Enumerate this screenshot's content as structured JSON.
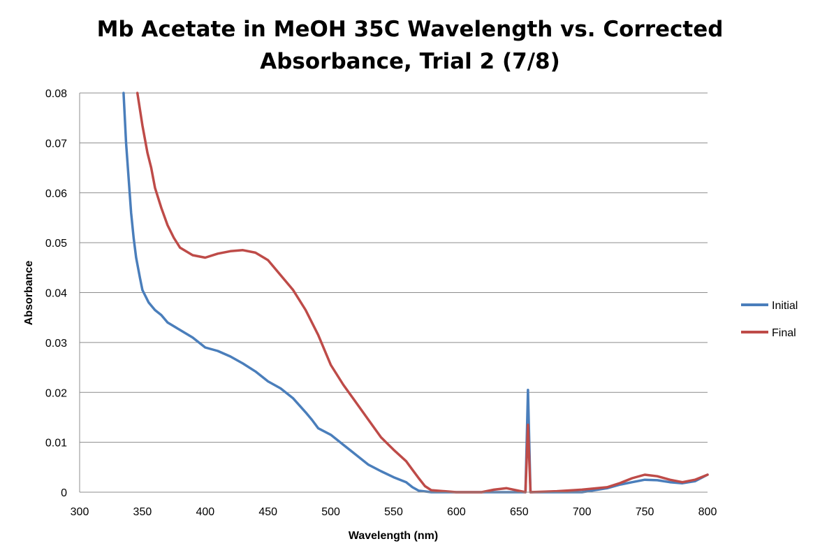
{
  "chart_data": {
    "type": "line",
    "title_lines": [
      "Mb Acetate in MeOH 35C Wavelength vs. Corrected",
      "Absorbance, Trial 2 (7/8)"
    ],
    "xlabel": "Wavelength (nm)",
    "ylabel": "Absorbance",
    "xlim": [
      300,
      800
    ],
    "ylim": [
      0,
      0.08
    ],
    "x_ticks": [
      "300",
      "350",
      "400",
      "450",
      "500",
      "550",
      "600",
      "650",
      "700",
      "750",
      "800"
    ],
    "y_ticks": [
      "0",
      "0.01",
      "0.02",
      "0.03",
      "0.04",
      "0.05",
      "0.06",
      "0.07",
      "0.08"
    ],
    "grid": "horizontal",
    "legend_position": "right",
    "series": [
      {
        "name": "Initial",
        "color": "#4a7ebb",
        "points": [
          [
            335,
            0.08
          ],
          [
            337,
            0.07
          ],
          [
            339,
            0.063
          ],
          [
            341,
            0.056
          ],
          [
            343,
            0.051
          ],
          [
            345,
            0.047
          ],
          [
            348,
            0.043
          ],
          [
            350,
            0.0405
          ],
          [
            355,
            0.038
          ],
          [
            360,
            0.0365
          ],
          [
            365,
            0.0355
          ],
          [
            370,
            0.034
          ],
          [
            380,
            0.0325
          ],
          [
            390,
            0.031
          ],
          [
            400,
            0.029
          ],
          [
            410,
            0.0283
          ],
          [
            420,
            0.0272
          ],
          [
            430,
            0.0258
          ],
          [
            440,
            0.0242
          ],
          [
            450,
            0.0222
          ],
          [
            460,
            0.0208
          ],
          [
            470,
            0.0188
          ],
          [
            480,
            0.016
          ],
          [
            485,
            0.0145
          ],
          [
            490,
            0.0128
          ],
          [
            500,
            0.0115
          ],
          [
            510,
            0.0095
          ],
          [
            520,
            0.0075
          ],
          [
            530,
            0.0055
          ],
          [
            540,
            0.0042
          ],
          [
            550,
            0.003
          ],
          [
            560,
            0.002
          ],
          [
            565,
            0.001
          ],
          [
            570,
            0.0003
          ],
          [
            580,
            0.0
          ],
          [
            600,
            0.0
          ],
          [
            620,
            0.0
          ],
          [
            640,
            0.0
          ],
          [
            655,
            0.0
          ],
          [
            657,
            0.0205
          ],
          [
            659,
            0.0
          ],
          [
            680,
            0.0
          ],
          [
            700,
            0.0
          ],
          [
            720,
            0.0008
          ],
          [
            730,
            0.0015
          ],
          [
            740,
            0.002
          ],
          [
            750,
            0.0025
          ],
          [
            760,
            0.0024
          ],
          [
            770,
            0.002
          ],
          [
            780,
            0.0018
          ],
          [
            790,
            0.0022
          ],
          [
            800,
            0.0035
          ]
        ]
      },
      {
        "name": "Final",
        "color": "#be4b48",
        "points": [
          [
            346,
            0.08
          ],
          [
            350,
            0.0735
          ],
          [
            354,
            0.068
          ],
          [
            357,
            0.065
          ],
          [
            360,
            0.061
          ],
          [
            365,
            0.057
          ],
          [
            370,
            0.0535
          ],
          [
            375,
            0.051
          ],
          [
            380,
            0.049
          ],
          [
            390,
            0.0475
          ],
          [
            400,
            0.047
          ],
          [
            410,
            0.0478
          ],
          [
            420,
            0.0483
          ],
          [
            430,
            0.0485
          ],
          [
            440,
            0.048
          ],
          [
            450,
            0.0465
          ],
          [
            460,
            0.0435
          ],
          [
            470,
            0.0405
          ],
          [
            480,
            0.0365
          ],
          [
            490,
            0.0315
          ],
          [
            500,
            0.0255
          ],
          [
            510,
            0.0215
          ],
          [
            520,
            0.018
          ],
          [
            530,
            0.0145
          ],
          [
            540,
            0.011
          ],
          [
            550,
            0.0085
          ],
          [
            560,
            0.0062
          ],
          [
            565,
            0.0045
          ],
          [
            570,
            0.0028
          ],
          [
            575,
            0.0012
          ],
          [
            580,
            0.0004
          ],
          [
            600,
            0.0
          ],
          [
            620,
            0.0
          ],
          [
            630,
            0.0005
          ],
          [
            640,
            0.0008
          ],
          [
            655,
            0.0
          ],
          [
            657,
            0.0135
          ],
          [
            659,
            0.0
          ],
          [
            680,
            0.0002
          ],
          [
            700,
            0.0005
          ],
          [
            720,
            0.001
          ],
          [
            730,
            0.0018
          ],
          [
            740,
            0.0028
          ],
          [
            750,
            0.0035
          ],
          [
            760,
            0.0032
          ],
          [
            770,
            0.0025
          ],
          [
            780,
            0.002
          ],
          [
            790,
            0.0025
          ],
          [
            800,
            0.0035
          ]
        ]
      }
    ]
  }
}
